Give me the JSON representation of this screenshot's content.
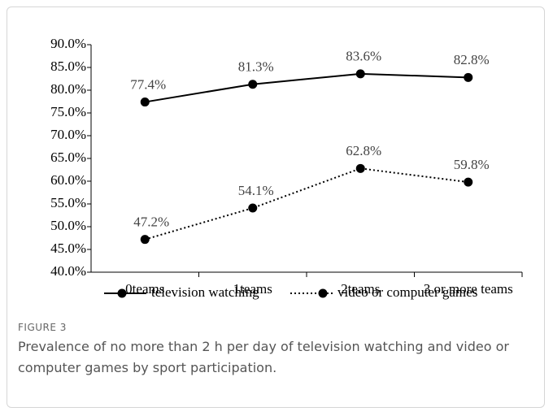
{
  "chart_data": {
    "type": "line",
    "categories": [
      "0teams",
      "1teams",
      "2teams",
      "3 or more teams"
    ],
    "series": [
      {
        "name": "television watching",
        "color": "#000000",
        "dash": "solid",
        "values": [
          77.4,
          81.3,
          83.6,
          82.8
        ],
        "value_labels": [
          "77.4%",
          "81.3%",
          "83.6%",
          "82.8%"
        ]
      },
      {
        "name": "video or computer games",
        "color": "#000000",
        "dash": "dotted",
        "values": [
          47.2,
          54.1,
          62.8,
          59.8
        ],
        "value_labels": [
          "47.2%",
          "54.1%",
          "62.8%",
          "59.8%"
        ]
      }
    ],
    "ylim": [
      40,
      90
    ],
    "yticks": [
      {
        "value": 40,
        "label": "40.0%"
      },
      {
        "value": 45,
        "label": "45.0%"
      },
      {
        "value": 50,
        "label": "50.0%"
      },
      {
        "value": 55,
        "label": "55.0%"
      },
      {
        "value": 60,
        "label": "60.0%"
      },
      {
        "value": 65,
        "label": "65.0%"
      },
      {
        "value": 70,
        "label": "70.0%"
      },
      {
        "value": 75,
        "label": "75.0%"
      },
      {
        "value": 80,
        "label": "80.0%"
      },
      {
        "value": 85,
        "label": "85.0%"
      },
      {
        "value": 90,
        "label": "90.0%"
      }
    ],
    "legend": "bottom"
  },
  "figure": {
    "label": "FIGURE 3",
    "caption": "Prevalence of no more than 2 h per day of television watching and video or computer games by sport participation."
  }
}
